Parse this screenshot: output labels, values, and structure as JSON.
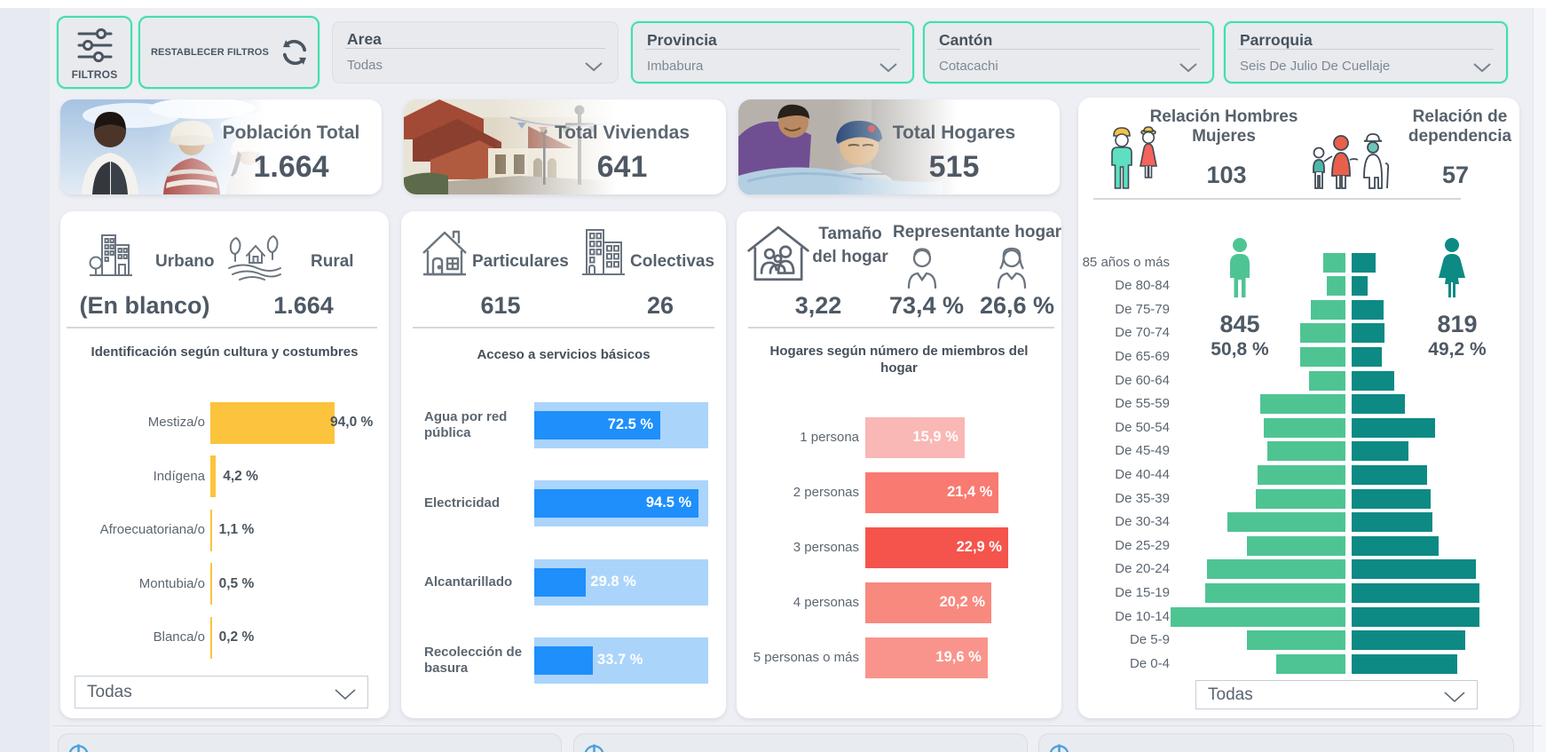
{
  "filter_bar": {
    "filtros_label": "FILTROS",
    "restablecer_label": "RESTABLECER FILTROS",
    "dropdowns": [
      {
        "label": "Area",
        "value": "Todas",
        "highlighted": false
      },
      {
        "label": "Provincia",
        "value": "Imbabura",
        "highlighted": true
      },
      {
        "label": "Cantón",
        "value": "Cotacachi",
        "highlighted": true
      },
      {
        "label": "Parroquia",
        "value": "Seis De Julio De Cuellaje",
        "highlighted": true
      }
    ]
  },
  "kpi_cards": [
    {
      "title": "Población Total",
      "value": "1.664"
    },
    {
      "title": "Total Viviendas",
      "value": "641"
    },
    {
      "title": "Total Hogares",
      "value": "515"
    }
  ],
  "ratio_card": {
    "hombres_mujeres": {
      "title_line1": "Relación Hombres",
      "title_line2": "Mujeres",
      "value": "103"
    },
    "dependencia": {
      "title_line1": "Relación de",
      "title_line2": "dependencia",
      "value": "57"
    }
  },
  "panel_area": {
    "urbano_label": "Urbano",
    "urbano_value": "(En blanco)",
    "rural_label": "Rural",
    "rural_value": "1.664",
    "dropdown_value": "Todas"
  },
  "panel_viviendas": {
    "particulares_label": "Particulares",
    "particulares_value": "615",
    "colectivas_label": "Colectivas",
    "colectivas_value": "26"
  },
  "panel_hogares": {
    "tamano_title": "Tamaño del hogar",
    "tamano_value": "3,22",
    "representante_title": "Representante hogar",
    "representante_male_value": "73,4 %",
    "representante_female_value": "26,6 %"
  },
  "pyramid_panel": {
    "men_total": "845",
    "men_pct": "50,8 %",
    "women_total": "819",
    "women_pct": "49,2 %",
    "dropdown_value": "Todas"
  },
  "colors": {
    "accent_teal": "#41dfab",
    "culture_bar": "#fcc33c",
    "services_bar": "#1e8ffb",
    "services_track": "#abd4fb",
    "household_bars": [
      "#f9b7b5",
      "#f87a71",
      "#f5544c",
      "#f8897f",
      "#f9948c"
    ],
    "pyramid_men": "#4fc493",
    "pyramid_women": "#0d8a84",
    "info_icon_blue": "#4aa0dc"
  },
  "chart_data": [
    {
      "id": "culture",
      "type": "bar",
      "title": "Identificación según cultura y costumbres",
      "categories": [
        "Mestiza/o",
        "Indígena",
        "Afroecuatoriana/o",
        "Montubia/o",
        "Blanca/o"
      ],
      "values": [
        94.0,
        4.2,
        1.1,
        0.5,
        0.2
      ],
      "labels": [
        "94,0 %",
        "4,2 %",
        "1,1 %",
        "0,5 %",
        "0,2 %"
      ],
      "xlim": [
        0,
        100
      ],
      "unit": "%"
    },
    {
      "id": "services",
      "type": "bar",
      "title": "Acceso a servicios básicos",
      "categories": [
        "Agua por red pública",
        "Electricidad",
        "Alcantarillado",
        "Recolección de basura"
      ],
      "values": [
        72.5,
        94.5,
        29.8,
        33.7
      ],
      "labels": [
        "72.5 %",
        "94.5 %",
        "29.8 %",
        "33.7 %"
      ],
      "xlim": [
        0,
        100
      ],
      "unit": "%"
    },
    {
      "id": "household_size",
      "type": "bar",
      "title": "Hogares según número de miembros del hogar",
      "categories": [
        "1 persona",
        "2 personas",
        "3 personas",
        "4 personas",
        "5 personas o más"
      ],
      "values": [
        15.9,
        21.4,
        22.9,
        20.2,
        19.6
      ],
      "labels": [
        "15,9 %",
        "21,4 %",
        "22,9 %",
        "20,2 %",
        "19,6 %"
      ],
      "unit": "%"
    },
    {
      "id": "population_pyramid",
      "type": "pyramid",
      "categories": [
        "85 años o más",
        "De 80-84",
        "De 75-79",
        "De 70-74",
        "De 65-69",
        "De 60-64",
        "De 55-59",
        "De 50-54",
        "De 45-49",
        "De 40-44",
        "De 35-39",
        "De 30-34",
        "De 25-29",
        "De 20-24",
        "De 15-19",
        "De 10-14",
        "De 5-9",
        "De 0-4"
      ],
      "series": [
        {
          "name": "Hombres",
          "total": 845,
          "values_estimated": true,
          "values": [
            13,
            11,
            20,
            26,
            26,
            21,
            49,
            47,
            45,
            51,
            52,
            68,
            57,
            80,
            81,
            101,
            57,
            40
          ]
        },
        {
          "name": "Mujeres",
          "total": 819,
          "values_estimated": true,
          "values": [
            15,
            10,
            20,
            21,
            19,
            27,
            34,
            53,
            36,
            48,
            50,
            51,
            55,
            79,
            81,
            81,
            72,
            67
          ]
        }
      ]
    }
  ]
}
